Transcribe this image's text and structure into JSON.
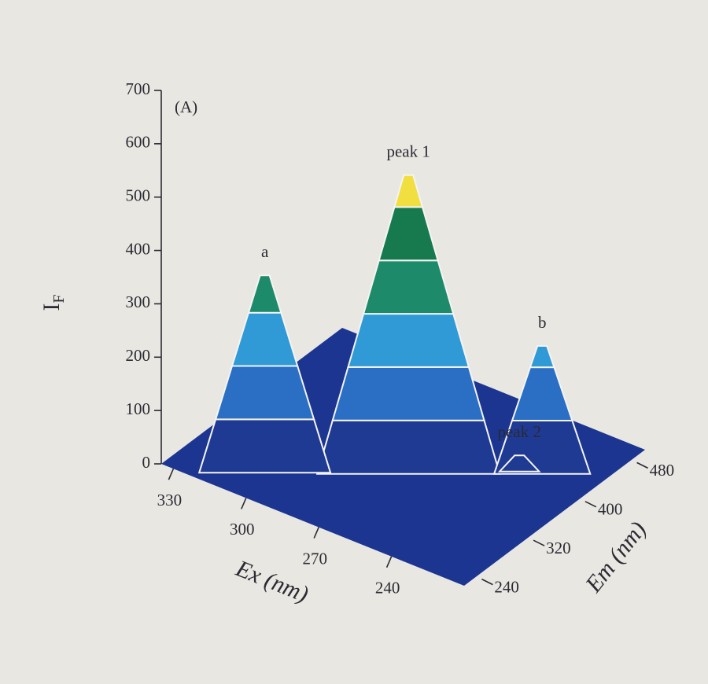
{
  "chart_data": {
    "type": "surface3d",
    "panel_label": "(A)",
    "zlabel": {
      "main": "I",
      "sub": "F"
    },
    "xlabel": "Ex (nm)",
    "ylabel": "Em (nm)",
    "zlim": [
      0,
      700
    ],
    "zticks": [
      0,
      100,
      200,
      300,
      400,
      500,
      600,
      700
    ],
    "xlim": [
      335,
      210
    ],
    "xticks": [
      330,
      300,
      270,
      240
    ],
    "ylim": [
      220,
      500
    ],
    "yticks": [
      240,
      320,
      400,
      480
    ],
    "band_colors": [
      "#1f3a93",
      "#2a6fc4",
      "#2f9ad6",
      "#1d8a6a",
      "#177a4f",
      "#f0df3e",
      "#e0542a"
    ],
    "floor_color": "#1c3590",
    "peaks": [
      {
        "label": "peak 1",
        "ex": 265,
        "em": 340,
        "value": 560
      },
      {
        "label": "a",
        "ex": 304,
        "em": 264,
        "value": 370
      },
      {
        "label": "b",
        "ex": 229,
        "em": 412,
        "value": 240
      },
      {
        "label": "peak 2",
        "ex": 236,
        "em": 403,
        "value": 30
      }
    ]
  }
}
